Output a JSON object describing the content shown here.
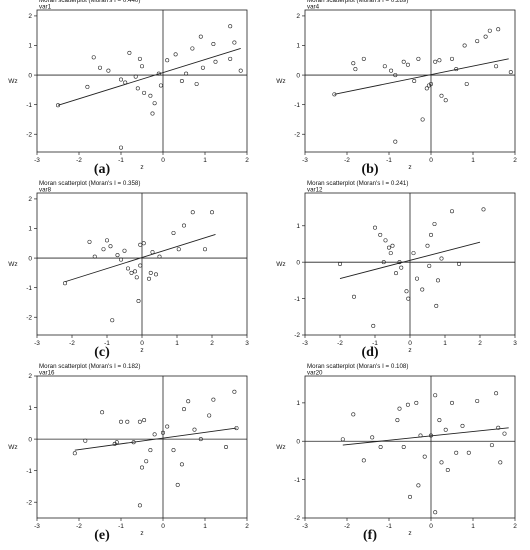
{
  "chart_data": [
    {
      "type": "scatter",
      "title": "Moran scatterplot (Moran's I = 0.440)",
      "subtitle": "var1",
      "caption": "(a)",
      "xlabel": "z",
      "ylabel": "Wz",
      "xlim": [
        -3,
        2
      ],
      "ylim": [
        -2.6,
        2.2
      ],
      "xticks": [
        -3,
        -2,
        -1,
        0,
        1,
        2
      ],
      "yticks": [
        -2,
        -1,
        0,
        1,
        2
      ],
      "fit_line": {
        "x": [
          -2.5,
          1.85
        ],
        "y": [
          -1.02,
          0.9
        ]
      },
      "points": [
        [
          -2.5,
          -1.02
        ],
        [
          -1.0,
          -2.45
        ],
        [
          -1.65,
          0.6
        ],
        [
          -1.5,
          0.25
        ],
        [
          -1.3,
          0.15
        ],
        [
          -1.8,
          -0.4
        ],
        [
          -1.0,
          -0.15
        ],
        [
          -0.9,
          -0.25
        ],
        [
          -0.8,
          0.75
        ],
        [
          -0.55,
          0.55
        ],
        [
          -0.5,
          0.3
        ],
        [
          -0.45,
          -0.6
        ],
        [
          -0.3,
          -0.7
        ],
        [
          -0.25,
          -1.3
        ],
        [
          -0.2,
          -0.95
        ],
        [
          -0.1,
          0.05
        ],
        [
          -0.05,
          -0.35
        ],
        [
          -0.6,
          -0.45
        ],
        [
          0.1,
          0.5
        ],
        [
          0.3,
          0.7
        ],
        [
          0.45,
          -0.2
        ],
        [
          0.55,
          0.05
        ],
        [
          0.7,
          0.9
        ],
        [
          0.8,
          -0.3
        ],
        [
          0.9,
          1.3
        ],
        [
          0.95,
          0.25
        ],
        [
          1.2,
          1.05
        ],
        [
          1.25,
          0.45
        ],
        [
          1.6,
          1.65
        ],
        [
          1.6,
          0.55
        ],
        [
          1.7,
          1.1
        ],
        [
          1.85,
          0.15
        ],
        [
          -0.65,
          -0.05
        ]
      ]
    },
    {
      "type": "scatter",
      "title": "Moran scatterplot (Moran's I = 0.289)",
      "subtitle": "var4",
      "caption": "(b)",
      "xlabel": "z",
      "ylabel": "Wz",
      "xlim": [
        -3,
        2
      ],
      "ylim": [
        -2.6,
        2.2
      ],
      "xticks": [
        -3,
        -2,
        -1,
        0,
        1,
        2
      ],
      "yticks": [
        -2,
        -1,
        0,
        1,
        2
      ],
      "fit_line": {
        "x": [
          -2.3,
          1.85
        ],
        "y": [
          -0.65,
          0.55
        ]
      },
      "points": [
        [
          -2.3,
          -0.65
        ],
        [
          -1.85,
          0.4
        ],
        [
          -1.8,
          0.2
        ],
        [
          -1.6,
          0.55
        ],
        [
          -1.1,
          0.3
        ],
        [
          -0.95,
          0.15
        ],
        [
          -0.85,
          0.0
        ],
        [
          -0.65,
          0.45
        ],
        [
          -0.55,
          0.35
        ],
        [
          -0.4,
          -0.2
        ],
        [
          -0.3,
          0.55
        ],
        [
          -0.2,
          -1.5
        ],
        [
          -0.1,
          -0.45
        ],
        [
          -0.05,
          -0.35
        ],
        [
          0.0,
          -0.3
        ],
        [
          0.1,
          0.45
        ],
        [
          0.2,
          0.5
        ],
        [
          0.25,
          -0.7
        ],
        [
          0.35,
          -0.85
        ],
        [
          0.5,
          0.55
        ],
        [
          0.6,
          0.2
        ],
        [
          0.8,
          1.0
        ],
        [
          0.85,
          -0.3
        ],
        [
          1.1,
          1.15
        ],
        [
          1.3,
          1.3
        ],
        [
          1.4,
          1.5
        ],
        [
          1.6,
          1.55
        ],
        [
          1.9,
          0.1
        ],
        [
          -0.85,
          -2.25
        ],
        [
          1.55,
          0.3
        ]
      ]
    },
    {
      "type": "scatter",
      "title": "Moran scatterplot (Moran's I = 0.358)",
      "subtitle": "var8",
      "caption": "(c)",
      "xlabel": "z",
      "ylabel": "Wz",
      "xlim": [
        -3,
        3
      ],
      "ylim": [
        -2.6,
        2.2
      ],
      "xticks": [
        -3,
        -2,
        -1,
        0,
        1,
        2,
        3
      ],
      "yticks": [
        -2,
        -1,
        0,
        1,
        2
      ],
      "fit_line": {
        "x": [
          -2.2,
          2.1
        ],
        "y": [
          -0.8,
          0.8
        ]
      },
      "points": [
        [
          -2.2,
          -0.85
        ],
        [
          -1.5,
          0.55
        ],
        [
          -1.35,
          0.05
        ],
        [
          -1.1,
          0.3
        ],
        [
          -1.0,
          0.6
        ],
        [
          -0.9,
          0.4
        ],
        [
          -0.85,
          -2.1
        ],
        [
          -0.7,
          0.1
        ],
        [
          -0.5,
          0.25
        ],
        [
          -0.4,
          -0.35
        ],
        [
          -0.3,
          -0.5
        ],
        [
          -0.2,
          -0.45
        ],
        [
          -0.15,
          -0.65
        ],
        [
          -0.1,
          -1.45
        ],
        [
          -0.05,
          0.45
        ],
        [
          0.05,
          0.5
        ],
        [
          0.2,
          -0.7
        ],
        [
          0.25,
          -0.5
        ],
        [
          0.4,
          -0.55
        ],
        [
          0.3,
          0.2
        ],
        [
          0.9,
          0.85
        ],
        [
          1.05,
          0.3
        ],
        [
          1.2,
          1.1
        ],
        [
          1.45,
          1.55
        ],
        [
          1.8,
          0.3
        ],
        [
          2.0,
          1.55
        ],
        [
          -0.05,
          -0.25
        ],
        [
          0.5,
          0.05
        ],
        [
          -0.6,
          -0.05
        ]
      ]
    },
    {
      "type": "scatter",
      "title": "Moran scatterplot (Moran's I = 0.241)",
      "subtitle": "var12",
      "caption": "(d)",
      "xlabel": "z",
      "ylabel": "Wz",
      "xlim": [
        -3,
        3
      ],
      "ylim": [
        -2.0,
        1.9
      ],
      "xticks": [
        -3,
        -2,
        -1,
        0,
        1,
        2,
        3
      ],
      "yticks": [
        -2,
        -1,
        0,
        1,
        2
      ],
      "fit_line": {
        "x": [
          -2.0,
          2.0
        ],
        "y": [
          -0.45,
          0.55
        ]
      },
      "points": [
        [
          -2.0,
          -0.05
        ],
        [
          -1.6,
          -0.95
        ],
        [
          -1.0,
          0.95
        ],
        [
          -0.85,
          0.75
        ],
        [
          -0.75,
          0.0
        ],
        [
          -0.7,
          0.6
        ],
        [
          -0.6,
          0.4
        ],
        [
          -0.55,
          0.25
        ],
        [
          -0.5,
          0.45
        ],
        [
          -0.4,
          -0.3
        ],
        [
          -0.3,
          0.0
        ],
        [
          -0.1,
          -0.8
        ],
        [
          -0.05,
          -1.0
        ],
        [
          0.1,
          0.25
        ],
        [
          0.2,
          -0.45
        ],
        [
          0.35,
          -0.75
        ],
        [
          0.5,
          0.45
        ],
        [
          0.6,
          0.75
        ],
        [
          0.7,
          1.05
        ],
        [
          0.75,
          -1.2
        ],
        [
          0.8,
          -0.5
        ],
        [
          0.9,
          0.1
        ],
        [
          1.2,
          1.4
        ],
        [
          1.4,
          -0.05
        ],
        [
          2.1,
          1.45
        ],
        [
          0.55,
          -0.1
        ],
        [
          -0.25,
          -0.15
        ],
        [
          -1.05,
          -1.75
        ]
      ]
    },
    {
      "type": "scatter",
      "title": "Moran scatterplot (Moran's I = 0.182)",
      "subtitle": "var16",
      "caption": "(e)",
      "xlabel": "z",
      "ylabel": "Wz",
      "xlim": [
        -3,
        2
      ],
      "ylim": [
        -2.5,
        2.0
      ],
      "xticks": [
        -3,
        -2,
        -1,
        0,
        1,
        2
      ],
      "yticks": [
        -2,
        -1,
        0,
        1,
        2
      ],
      "fit_line": {
        "x": [
          -2.1,
          1.75
        ],
        "y": [
          -0.35,
          0.35
        ]
      },
      "points": [
        [
          -2.1,
          -0.45
        ],
        [
          -1.85,
          -0.05
        ],
        [
          -1.45,
          0.85
        ],
        [
          -1.1,
          -0.1
        ],
        [
          -1.0,
          0.55
        ],
        [
          -0.85,
          0.55
        ],
        [
          -0.7,
          -0.1
        ],
        [
          -0.55,
          0.55
        ],
        [
          -0.5,
          -0.9
        ],
        [
          -0.45,
          0.6
        ],
        [
          -0.4,
          -0.7
        ],
        [
          -0.3,
          -0.35
        ],
        [
          -0.55,
          -2.1
        ],
        [
          -0.2,
          0.15
        ],
        [
          0.0,
          0.2
        ],
        [
          0.1,
          0.4
        ],
        [
          0.25,
          -0.35
        ],
        [
          0.35,
          -1.45
        ],
        [
          0.45,
          -0.8
        ],
        [
          0.5,
          0.95
        ],
        [
          0.6,
          1.2
        ],
        [
          0.75,
          0.3
        ],
        [
          0.9,
          0.0
        ],
        [
          1.1,
          0.75
        ],
        [
          1.2,
          1.25
        ],
        [
          1.5,
          -0.25
        ],
        [
          1.7,
          1.5
        ],
        [
          1.75,
          0.35
        ],
        [
          -1.15,
          -0.15
        ]
      ]
    },
    {
      "type": "scatter",
      "title": "Moran scatterplot (Moran's I = 0.108)",
      "subtitle": "var20",
      "caption": "(f)",
      "xlabel": "z",
      "ylabel": "Wz",
      "xlim": [
        -3,
        2
      ],
      "ylim": [
        -2.0,
        1.7
      ],
      "xticks": [
        -3,
        -2,
        -1,
        0,
        1,
        2
      ],
      "yticks": [
        -2,
        -1,
        0,
        1,
        2
      ],
      "fit_line": {
        "x": [
          -2.1,
          1.85
        ],
        "y": [
          -0.1,
          0.35
        ]
      },
      "points": [
        [
          -2.1,
          0.05
        ],
        [
          -1.85,
          0.7
        ],
        [
          -1.6,
          -0.5
        ],
        [
          -1.4,
          0.1
        ],
        [
          -1.2,
          -0.15
        ],
        [
          -0.8,
          0.55
        ],
        [
          -0.75,
          0.85
        ],
        [
          -0.65,
          -0.15
        ],
        [
          -0.55,
          0.95
        ],
        [
          -0.5,
          -1.45
        ],
        [
          -0.35,
          1.0
        ],
        [
          -0.3,
          -1.15
        ],
        [
          -0.25,
          0.15
        ],
        [
          -0.15,
          -0.4
        ],
        [
          0.0,
          0.15
        ],
        [
          0.1,
          -1.85
        ],
        [
          0.2,
          0.55
        ],
        [
          0.25,
          -0.55
        ],
        [
          0.35,
          0.3
        ],
        [
          0.4,
          -0.75
        ],
        [
          0.5,
          1.0
        ],
        [
          0.6,
          -0.3
        ],
        [
          0.75,
          0.4
        ],
        [
          0.9,
          -0.3
        ],
        [
          1.1,
          1.05
        ],
        [
          1.45,
          -0.1
        ],
        [
          1.55,
          1.25
        ],
        [
          1.6,
          0.35
        ],
        [
          1.65,
          -0.55
        ],
        [
          1.75,
          0.2
        ],
        [
          0.1,
          1.2
        ]
      ]
    }
  ]
}
